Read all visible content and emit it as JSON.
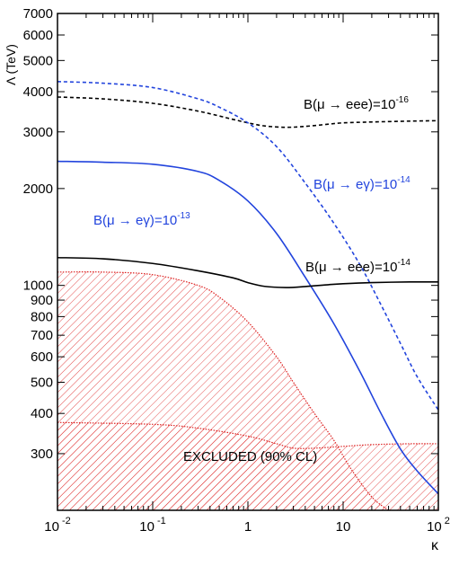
{
  "chart_data": {
    "type": "line",
    "title": "",
    "xlabel": "κ",
    "ylabel": "Λ (TeV)",
    "xscale": "log",
    "yscale": "log",
    "xlim": [
      0.01,
      100
    ],
    "ylim": [
      200,
      7000
    ],
    "grid": false,
    "x_ticks": [
      {
        "value": 0.01,
        "base": "10",
        "exp": "-2"
      },
      {
        "value": 0.1,
        "base": "10",
        "exp": "-1"
      },
      {
        "value": 1,
        "base": "1",
        "exp": ""
      },
      {
        "value": 10,
        "base": "10",
        "exp": ""
      },
      {
        "value": 100,
        "base": "10",
        "exp": "2"
      }
    ],
    "y_ticks": [
      {
        "value": 300,
        "label": "300"
      },
      {
        "value": 400,
        "label": "400"
      },
      {
        "value": 500,
        "label": "500"
      },
      {
        "value": 600,
        "label": "600"
      },
      {
        "value": 700,
        "label": "700"
      },
      {
        "value": 800,
        "label": "800"
      },
      {
        "value": 900,
        "label": "900"
      },
      {
        "value": 1000,
        "label": "1000"
      },
      {
        "value": 2000,
        "label": "2000"
      },
      {
        "value": 3000,
        "label": "3000"
      },
      {
        "value": 4000,
        "label": "4000"
      },
      {
        "value": 5000,
        "label": "5000"
      },
      {
        "value": 6000,
        "label": "6000"
      },
      {
        "value": 7000,
        "label": "7000"
      }
    ],
    "series": [
      {
        "id": "meee16",
        "color": "#000000",
        "dash": "dashed",
        "x": [
          0.01,
          0.03,
          0.1,
          0.3,
          0.7,
          1.0,
          1.5,
          2.5,
          4,
          7,
          10,
          20,
          50,
          100
        ],
        "y": [
          3850,
          3800,
          3680,
          3480,
          3280,
          3200,
          3130,
          3100,
          3120,
          3170,
          3200,
          3220,
          3240,
          3250
        ]
      },
      {
        "id": "megamma14",
        "color": "#2244dd",
        "dash": "dashed",
        "x": [
          0.01,
          0.03,
          0.1,
          0.3,
          0.5,
          1,
          2,
          4,
          8,
          15,
          25,
          40,
          60,
          100
        ],
        "y": [
          4300,
          4250,
          4120,
          3800,
          3580,
          3200,
          2700,
          2080,
          1560,
          1160,
          870,
          660,
          520,
          410
        ]
      },
      {
        "id": "megamma13",
        "color": "#2244dd",
        "dash": "solid",
        "x": [
          0.01,
          0.03,
          0.1,
          0.3,
          0.5,
          1,
          2,
          4,
          8,
          15,
          25,
          40,
          60,
          100
        ],
        "y": [
          2430,
          2415,
          2380,
          2260,
          2120,
          1830,
          1450,
          1060,
          760,
          540,
          400,
          310,
          265,
          225
        ]
      },
      {
        "id": "meee14",
        "color": "#000000",
        "dash": "solid",
        "x": [
          0.01,
          0.03,
          0.1,
          0.3,
          0.7,
          1.0,
          1.5,
          2.5,
          4,
          7,
          10,
          20,
          50,
          100
        ],
        "y": [
          1220,
          1210,
          1170,
          1110,
          1055,
          1020,
          993,
          985,
          992,
          1005,
          1012,
          1020,
          1025,
          1025
        ]
      }
    ],
    "excluded_region": {
      "color": "#dd2222",
      "upper_x": [
        0.01,
        0.03,
        0.1,
        0.3,
        0.5,
        1,
        2,
        3,
        5,
        8,
        12,
        20,
        30
      ],
      "upper_y": [
        1100,
        1100,
        1080,
        1000,
        920,
        770,
        600,
        500,
        400,
        330,
        270,
        220,
        200
      ],
      "band_x": [
        0.01,
        0.1,
        0.3,
        1,
        2,
        3,
        5,
        10,
        20,
        50,
        100
      ],
      "band_y": [
        375,
        370,
        360,
        340,
        322,
        312,
        312,
        316,
        320,
        322,
        322
      ]
    },
    "annotations": [
      {
        "text_pre": "B(μ → eee)=10",
        "exp": "-16",
        "color": "#000000"
      },
      {
        "text_pre": "B(μ → eγ)=10",
        "exp": "-14",
        "color": "#2244dd"
      },
      {
        "text_pre": "B(μ → eγ)=10",
        "exp": "-13",
        "color": "#2244dd"
      },
      {
        "text_pre": "B(μ → eee)=10",
        "exp": "-14",
        "color": "#000000"
      },
      {
        "text_pre": "EXCLUDED (90% CL)",
        "exp": "",
        "color": "#000000"
      }
    ]
  }
}
